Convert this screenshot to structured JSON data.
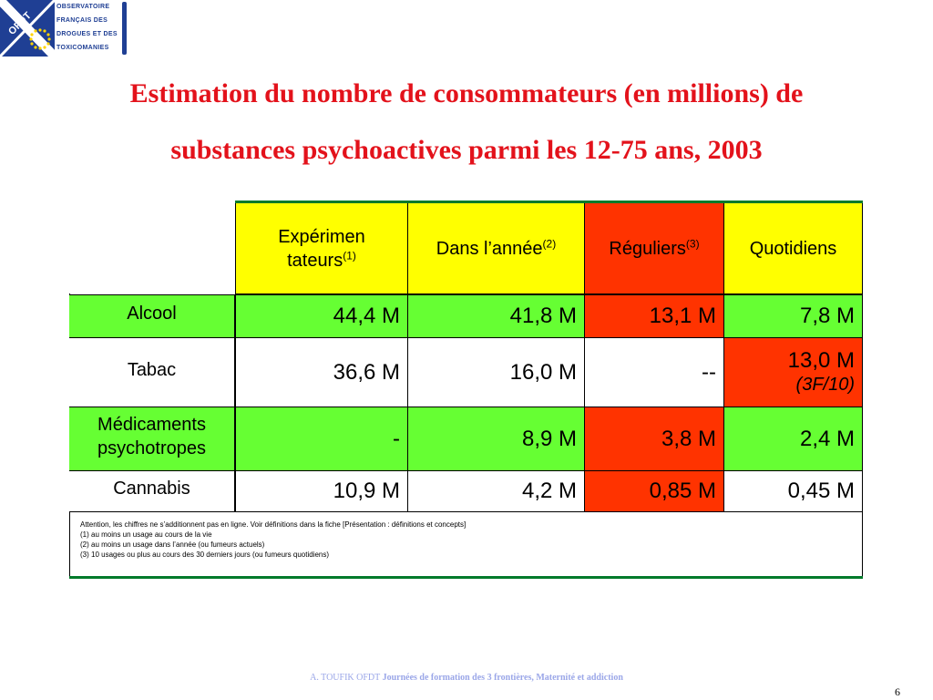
{
  "logo": {
    "abbr": "OFDT",
    "lines": [
      "OBSERVATOIRE",
      "FRANÇAIS DES",
      "DROGUES ET DES",
      "TOXICOMANIES"
    ]
  },
  "title": {
    "line1": "Estimation du nombre de consommateurs (en millions) de",
    "line2": "substances psychoactives parmi les 12-75 ans, 2003"
  },
  "table": {
    "headers": [
      {
        "line1": "Expérimen",
        "line2": "tateurs",
        "sup": "(1)"
      },
      {
        "label": "Dans l’année",
        "sup": "(2)"
      },
      {
        "label": "Réguliers",
        "sup": "(3)"
      },
      {
        "label": "Quotidiens"
      }
    ],
    "rows": [
      {
        "label": "Alcool",
        "values": [
          "44,4 M",
          "41,8 M",
          "13,1 M",
          "7,8 M"
        ]
      },
      {
        "label": "Tabac",
        "values": [
          "36,6 M",
          "16,0 M",
          "--",
          "13,0 M"
        ],
        "note": "(3F/10)"
      },
      {
        "label_line1": "Médicaments",
        "label_line2": "psychotropes",
        "values": [
          "-",
          "8,9 M",
          "3,8 M",
          "2,4 M"
        ]
      },
      {
        "label": "Cannabis",
        "values": [
          "10,9 M",
          "4,2 M",
          "0,85 M",
          "0,45 M"
        ]
      }
    ],
    "notes": [
      "Attention, les chiffres ne s’additionnent pas en ligne. Voir définitions dans la fiche [Présentation : définitions et concepts]",
      "(1) au moins un usage au cours de la vie",
      "(2) au moins un usage dans l’année (ou fumeurs actuels)",
      "(3) 10 usages ou plus au cours des 30 derniers jours (ou fumeurs quotidiens)"
    ]
  },
  "colors": {
    "title": "#e3121b",
    "header_yellow": "#ffff00",
    "green": "#66ff33",
    "red": "#ff3300",
    "logo_blue": "#1f3f94"
  },
  "footer": {
    "author": "A. TOUFIK OFDT",
    "event": "Journées de formation des 3 frontières, Maternité et addiction"
  },
  "page_number": "6"
}
